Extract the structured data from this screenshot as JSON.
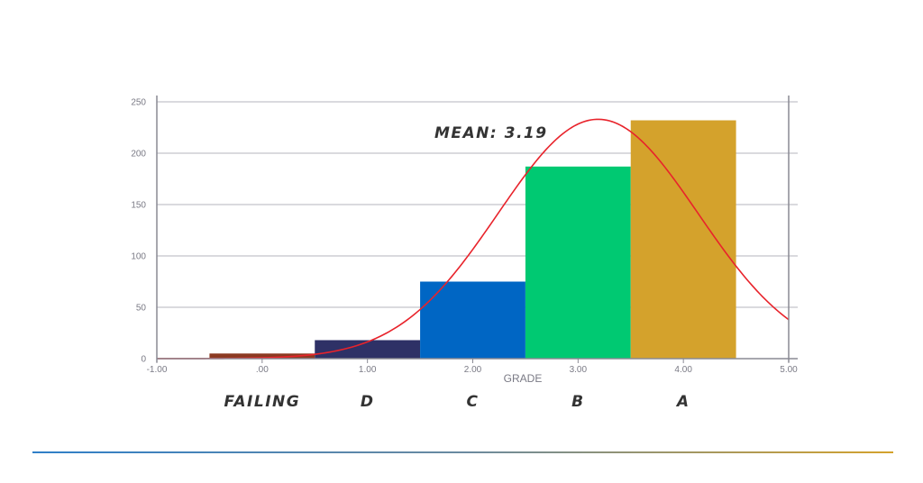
{
  "chart_data": {
    "type": "bar",
    "xlabel": "GRADE",
    "ylabel": "",
    "xlim": [
      -1.0,
      5.0
    ],
    "ylim": [
      0,
      250
    ],
    "x_ticks": [
      -1.0,
      0.0,
      1.0,
      2.0,
      3.0,
      4.0,
      5.0
    ],
    "x_tick_labels": [
      "-1.00",
      ".00",
      "1.00",
      "2.00",
      "3.00",
      "4.00",
      "5.00"
    ],
    "y_ticks": [
      0,
      50,
      100,
      150,
      200,
      250
    ],
    "y_tick_labels": [
      "0",
      "50",
      "100",
      "150",
      "200",
      "250"
    ],
    "grid": true,
    "bars": [
      {
        "x": 0,
        "value": 5,
        "label": "FAILING",
        "color": "#8b3a22"
      },
      {
        "x": 1,
        "value": 18,
        "label": "D",
        "color": "#2e3166"
      },
      {
        "x": 2,
        "value": 75,
        "label": "C",
        "color": "#0066c4"
      },
      {
        "x": 3,
        "value": 187,
        "label": "B",
        "color": "#00c972"
      },
      {
        "x": 4,
        "value": 232,
        "label": "A",
        "color": "#d4a22c"
      }
    ],
    "bin_width": 1.0,
    "fit_curve": {
      "type": "normal",
      "mean": 3.19,
      "peak": 233,
      "sd": 0.95,
      "color": "#e8232b"
    },
    "annotation": "MEAN: 3.19"
  },
  "divider_colors": [
    "#2f7fc8",
    "#d4a22c"
  ]
}
